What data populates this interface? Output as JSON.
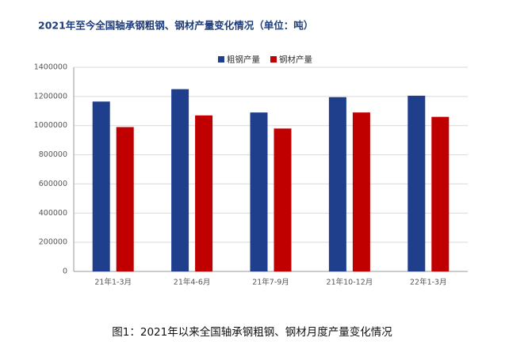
{
  "chart_data": {
    "type": "bar",
    "title": "2021年至今全国轴承钢粗钢、钢材产量变化情况（单位：吨）",
    "caption": "图1：2021年以来全国轴承钢粗钢、钢材月度产量变化情况",
    "categories": [
      "21年1-3月",
      "21年4-6月",
      "21年7-9月",
      "21年10-12月",
      "22年1-3月"
    ],
    "series": [
      {
        "name": "粗钢产量",
        "color": "#1f3f8c",
        "values": [
          1165000,
          1250000,
          1090000,
          1195000,
          1205000
        ]
      },
      {
        "name": "钢材产量",
        "color": "#c00000",
        "values": [
          990000,
          1070000,
          980000,
          1090000,
          1060000
        ]
      }
    ],
    "ylim": [
      0,
      1400000
    ],
    "yticks": [
      0,
      200000,
      400000,
      600000,
      800000,
      1000000,
      1200000,
      1400000
    ],
    "grid": true,
    "legend": "top"
  }
}
